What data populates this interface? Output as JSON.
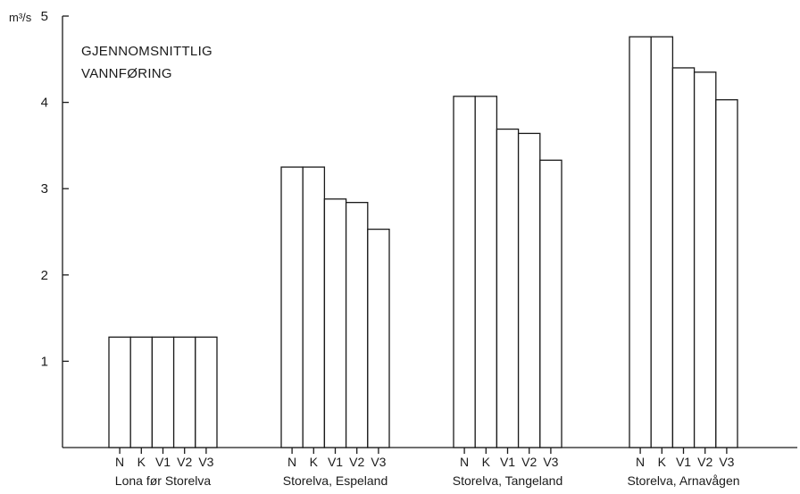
{
  "chart_data": {
    "type": "bar",
    "title_lines": [
      "GJENNOMSNITTLIG",
      "VANNFØRING"
    ],
    "unit_label": "m³/s",
    "ylim": [
      0,
      5
    ],
    "yticks": [
      "1",
      "2",
      "3",
      "4",
      "5"
    ],
    "bar_labels": [
      "N",
      "K",
      "V1",
      "V2",
      "V3"
    ],
    "groups": [
      {
        "name": "Lona før Storelva",
        "values": [
          1.28,
          1.28,
          1.28,
          1.28,
          1.28
        ]
      },
      {
        "name": "Storelva, Espeland",
        "values": [
          3.25,
          3.25,
          2.88,
          2.84,
          2.53
        ]
      },
      {
        "name": "Storelva, Tangeland",
        "values": [
          4.07,
          4.07,
          3.69,
          3.64,
          3.33
        ]
      },
      {
        "name": "Storelva, Arnavågen",
        "values": [
          4.76,
          4.76,
          4.4,
          4.35,
          4.03
        ]
      }
    ],
    "grid": false
  }
}
